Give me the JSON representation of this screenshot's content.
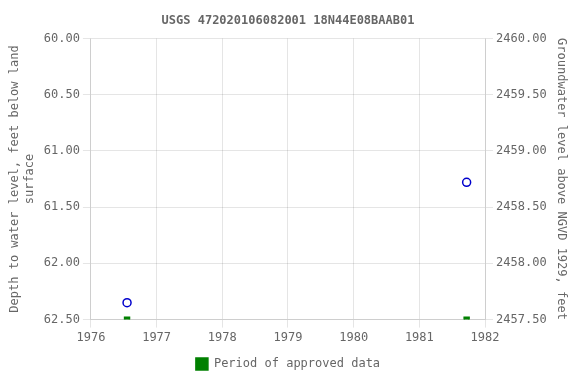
{
  "chart_data": {
    "type": "scatter",
    "title": "USGS 472020106082001 18N44E08BAAB01",
    "ylabel": "Depth to water level, feet below land\nsurface",
    "y2label": "Groundwater level above NGVD 1929, feet",
    "xlim": [
      1976,
      1982
    ],
    "xticks": [
      1976,
      1977,
      1978,
      1979,
      1980,
      1981,
      1982
    ],
    "ylim": [
      62.5,
      60.0
    ],
    "yticks": [
      {
        "value": 60.0,
        "label": "60.00"
      },
      {
        "value": 60.5,
        "label": "60.50"
      },
      {
        "value": 61.0,
        "label": "61.00"
      },
      {
        "value": 61.5,
        "label": "61.50"
      },
      {
        "value": 62.0,
        "label": "62.00"
      },
      {
        "value": 62.5,
        "label": "62.50"
      }
    ],
    "y2lim": [
      2457.5,
      2460.0
    ],
    "y2ticks": [
      {
        "value": 2460.0,
        "label": "2460.00"
      },
      {
        "value": 2459.5,
        "label": "2459.50"
      },
      {
        "value": 2459.0,
        "label": "2459.00"
      },
      {
        "value": 2458.5,
        "label": "2458.50"
      },
      {
        "value": 2458.0,
        "label": "2458.00"
      },
      {
        "value": 2457.5,
        "label": "2457.50"
      }
    ],
    "grid": true,
    "legend": "bottom",
    "series": [
      {
        "color": "#0000cc",
        "marker": "circle",
        "x": [
          1976.55,
          1981.72
        ],
        "values": [
          62.35,
          61.28
        ]
      },
      {
        "name": "Period of approved data",
        "color": "#008000",
        "marker": "square",
        "x": [
          1976.55,
          1981.72
        ],
        "values": [
          62.5,
          62.5
        ]
      }
    ]
  }
}
